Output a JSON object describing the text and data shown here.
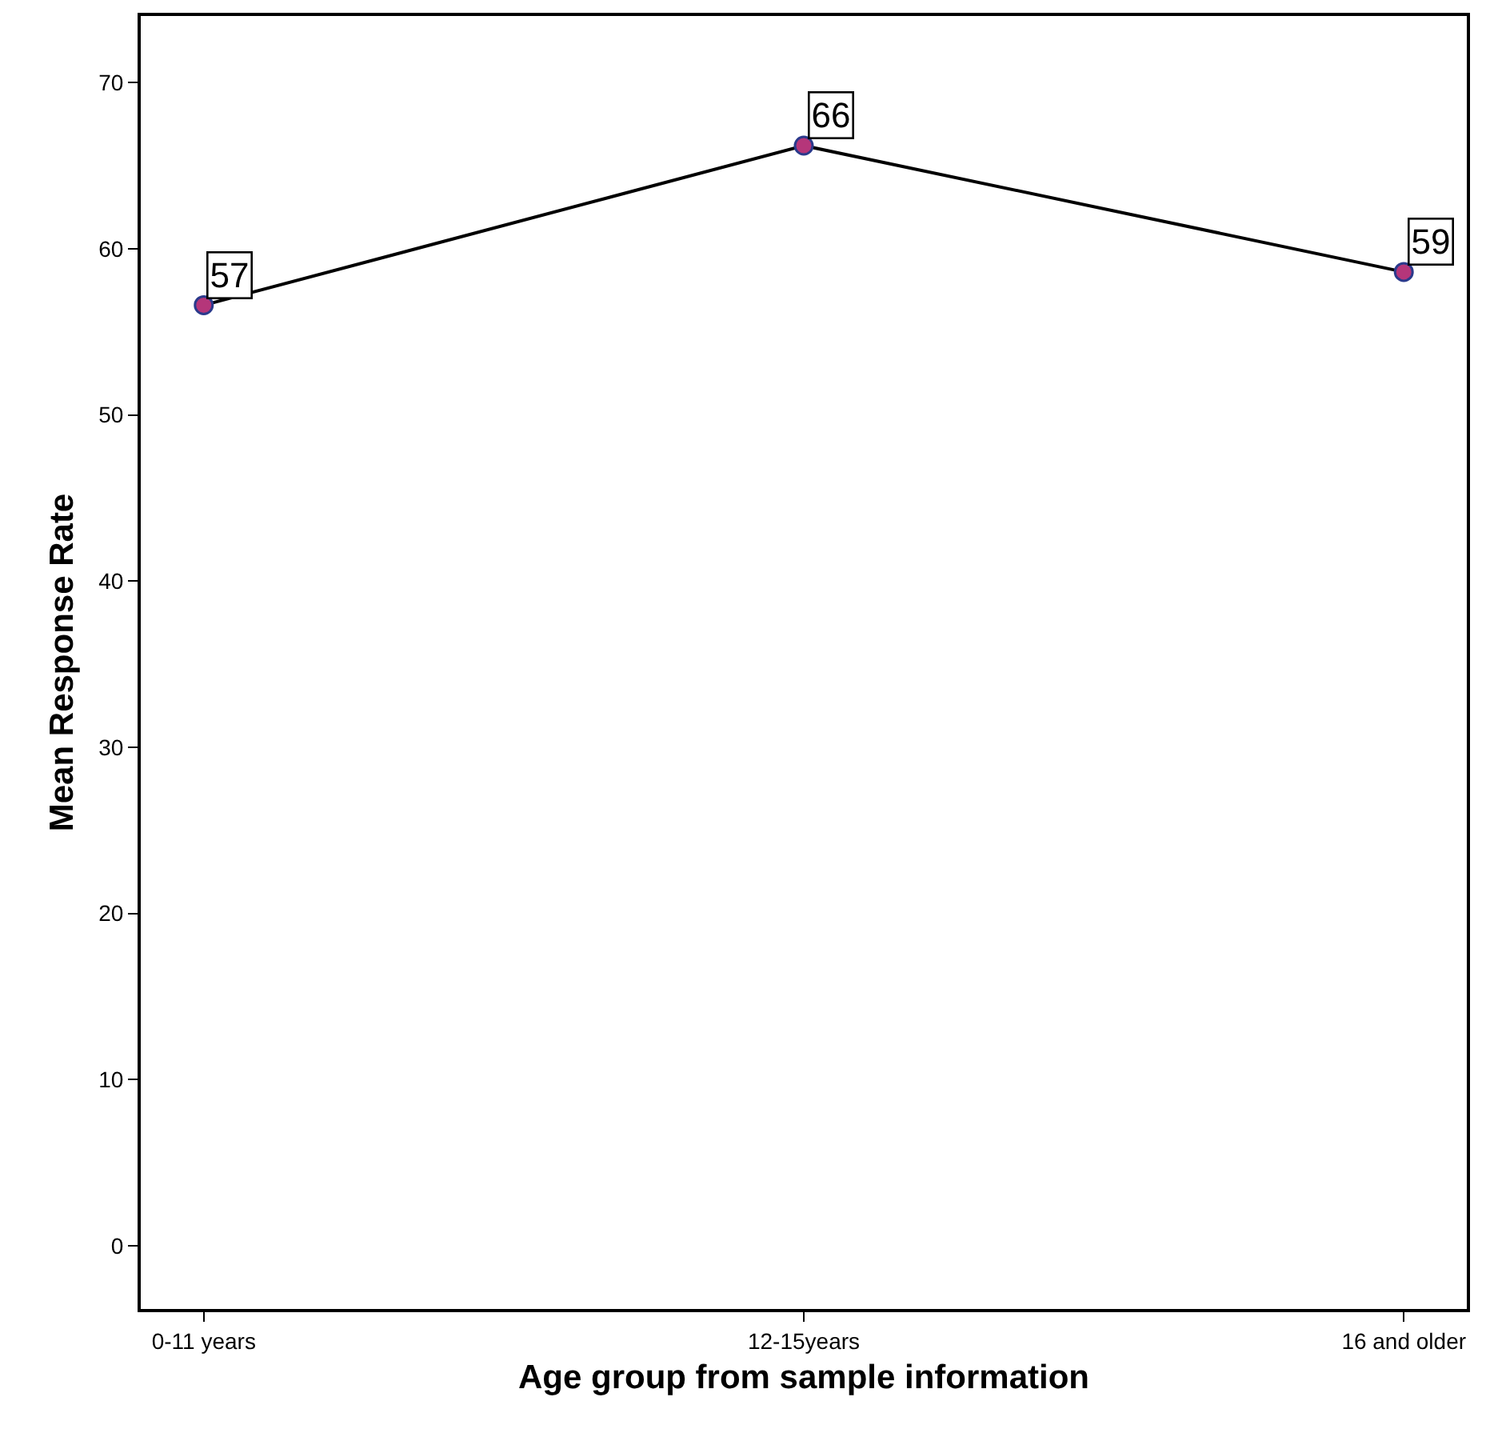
{
  "chart_data": {
    "type": "line",
    "xlabel": "Age group from sample information",
    "ylabel": "Mean Response Rate",
    "categories": [
      "0-11 years",
      "12-15years",
      "16 and older"
    ],
    "series": [
      {
        "color": "#000000",
        "colors": [
          "#b5367a",
          "#b5367a",
          "#b5367a"
        ],
        "values": [
          56.6,
          66.2,
          58.6
        ],
        "value_labels": [
          "57",
          "66",
          "59"
        ]
      }
    ],
    "ylim": [
      -3.8,
      74
    ],
    "yticks": [
      0,
      10,
      20,
      30,
      40,
      50,
      60,
      70
    ],
    "marker": "circle",
    "line_style": "solid"
  }
}
